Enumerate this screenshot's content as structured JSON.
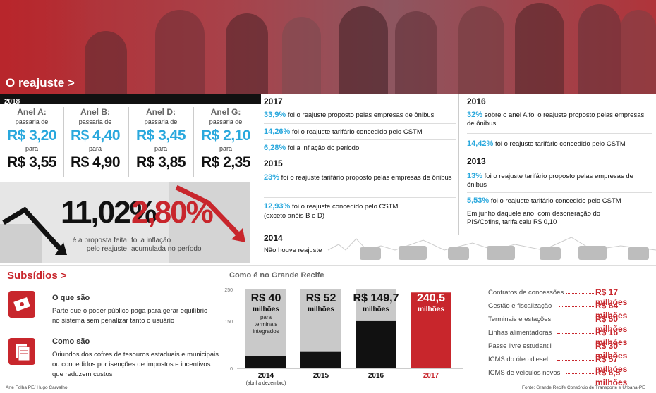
{
  "hero": {
    "title": "O reajuste >"
  },
  "year_2018": {
    "label": "2018"
  },
  "rings": [
    {
      "name": "Anel A:",
      "pd": "passaria de",
      "from": "R$ 3,20",
      "para": "para",
      "to": "R$ 3,55"
    },
    {
      "name": "Anel B:",
      "pd": "passaria de",
      "from": "R$ 4,40",
      "para": "para",
      "to": "R$ 4,90"
    },
    {
      "name": "Anel D:",
      "pd": "passaria de",
      "from": "R$ 3,45",
      "para": "para",
      "to": "R$ 3,85"
    },
    {
      "name": "Anel G:",
      "pd": "passaria de",
      "from": "R$ 2,10",
      "para": "para",
      "to": "R$ 2,35"
    }
  ],
  "stats": {
    "s1_value": "11,02%",
    "s1_cap1": "é a proposta feita",
    "s1_cap2": "pelo reajuste",
    "s2_value": "2,80%",
    "s2_cap1": "foi a inflação",
    "s2_cap2": "acumulada no período"
  },
  "mid": {
    "y2017": "2017",
    "r2017_1_pct": "33,9%",
    "r2017_1_txt": " foi o reajuste proposto pelas empresas de ônibus",
    "r2017_2_pct": "14,26%",
    "r2017_2_txt": " foi o reajuste tarifário concedido pelo CSTM",
    "r2017_3_pct": "6,28%",
    "r2017_3_txt": " foi a inflação do período",
    "y2015": "2015",
    "r2015_1_pct": "23%",
    "r2015_1_txt": " foi o reajuste tarifário proposto pelas empresas de ônibus",
    "r2015_2_pct": "12,93%",
    "r2015_2_txt": " foi o reajuste concedido pelo CSTM",
    "r2015_2_note": "(exceto anéis B e D)",
    "y2014": "2014",
    "r2014_txt": "Não houve reajuste"
  },
  "right": {
    "y2016": "2016",
    "r2016_1_pct": "32%",
    "r2016_1_txt": " sobre o anel A foi o reajuste proposto pelas empresas de ônibus",
    "r2016_2_pct": "14,42%",
    "r2016_2_txt": " foi o reajuste tarifário concedido pelo CSTM",
    "y2013": "2013",
    "r2013_1_pct": "13%",
    "r2013_1_txt": " foi o reajuste tarifário proposto pelas empresas de ônibus",
    "r2013_2_pct": "5,53%",
    "r2013_2_txt": " foi o reajuste tarifário concedido pelo CSTM",
    "r2013_note": "Em junho daquele ano, com desoneração do PIS/Cofins, tarifa caiu R$ 0,10"
  },
  "subsidios": {
    "title": "Subsídios >",
    "q1_title": "O que são",
    "q1_text": "Parte que o poder público paga para gerar equilíbrio no sistema sem penalizar tanto o usuário",
    "q2_title": "Como são",
    "q2_text": "Oriundos dos cofres de tesouros estaduais e municipais ou concedidos por isenções de impostos e incentivos que reduzem custos"
  },
  "chart_data": {
    "type": "bar",
    "title": "Como é no Grande Recife",
    "categories": [
      "2014",
      "2015",
      "2016",
      "2017"
    ],
    "sublabels": [
      "(abril a dezembro)",
      "",
      "",
      ""
    ],
    "values": [
      40,
      52,
      149.7,
      240.5
    ],
    "value_labels": [
      "R$ 40",
      "R$ 52",
      "R$ 149,7",
      "240,5"
    ],
    "unit_labels": [
      "milhões",
      "milhões",
      "milhões",
      "milhões"
    ],
    "notes": [
      "para terminais integrados",
      "",
      "",
      ""
    ],
    "yticks": [
      "250",
      "150",
      "0"
    ],
    "ylim": [
      0,
      250
    ],
    "colors": [
      "#111111",
      "#111111",
      "#111111",
      "#c8262c"
    ],
    "background": "#c9c9c9"
  },
  "costs": {
    "items": [
      {
        "label": "Contratos de concessões",
        "value": "R$ 17 milhões"
      },
      {
        "label": "Gestão e fiscalização",
        "value": "R$ 64 milhões"
      },
      {
        "label": "Terminais e estações",
        "value": "R$ 50 milhões"
      },
      {
        "label": "Linhas alimentadoras",
        "value": "R$ 16 milhões"
      },
      {
        "label": "Passe livre estudantil",
        "value": "R$ 30 milhões"
      },
      {
        "label": "ICMS do óleo diesel",
        "value": "R$ 57 milhões"
      },
      {
        "label": "ICMS de veículos novos",
        "value": "R$ 6,5 milhões"
      }
    ]
  },
  "credits": {
    "left": "Arte Folha PE/ Hugo Carvalho",
    "right": "Fonte: Grande Recife Consórcio de Transporte e Urbana-PE"
  },
  "colors": {
    "accent_red": "#c8262c",
    "accent_blue": "#29a8dd"
  }
}
